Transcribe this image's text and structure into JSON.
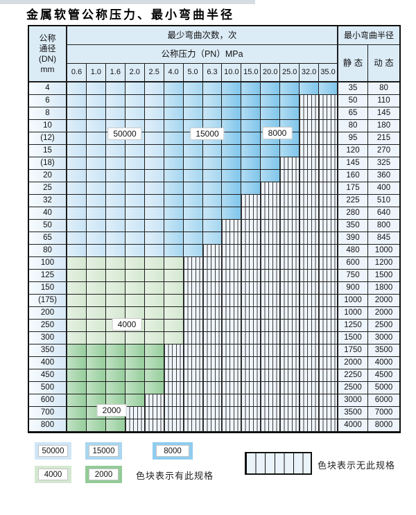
{
  "page": {
    "title": "金属软管公称压力、最小弯曲半径"
  },
  "table": {
    "corner_lines": [
      "公称",
      "通径",
      "(DN)",
      "mm"
    ],
    "bend_cycles_header": "最少弯曲次数，次",
    "pressure_header": "公称压力（PN）MPa",
    "radius_header": "最小弯曲半径",
    "static_header": "静 态",
    "dynamic_header": "动 态",
    "pressures": [
      "0.6",
      "1.0",
      "1.6",
      "2.0",
      "2.5",
      "4.0",
      "5.0",
      "6.3",
      "10.0",
      "15.0",
      "20.0",
      "25.0",
      "32.0",
      "35.0"
    ],
    "rows": [
      {
        "dn": "4",
        "zone": "blue",
        "colored": 14,
        "static": "35",
        "dynamic": "80"
      },
      {
        "dn": "6",
        "zone": "blue",
        "colored": 12,
        "static": "50",
        "dynamic": "110"
      },
      {
        "dn": "8",
        "zone": "blue",
        "colored": 12,
        "static": "65",
        "dynamic": "145"
      },
      {
        "dn": "10",
        "zone": "blue",
        "colored": 12,
        "static": "80",
        "dynamic": "180"
      },
      {
        "dn": "(12)",
        "zone": "blue",
        "colored": 12,
        "static": "95",
        "dynamic": "215"
      },
      {
        "dn": "15",
        "zone": "blue",
        "colored": 12,
        "static": "120",
        "dynamic": "270"
      },
      {
        "dn": "(18)",
        "zone": "blue",
        "colored": 11,
        "static": "145",
        "dynamic": "325"
      },
      {
        "dn": "20",
        "zone": "blue",
        "colored": 11,
        "static": "160",
        "dynamic": "360"
      },
      {
        "dn": "25",
        "zone": "blue",
        "colored": 10,
        "static": "175",
        "dynamic": "400"
      },
      {
        "dn": "32",
        "zone": "blue",
        "colored": 9,
        "static": "225",
        "dynamic": "510"
      },
      {
        "dn": "40",
        "zone": "blue",
        "colored": 9,
        "static": "280",
        "dynamic": "640"
      },
      {
        "dn": "50",
        "zone": "blue",
        "colored": 8,
        "static": "350",
        "dynamic": "800"
      },
      {
        "dn": "65",
        "zone": "blue",
        "colored": 8,
        "static": "390",
        "dynamic": "845"
      },
      {
        "dn": "80",
        "zone": "blue",
        "colored": 7,
        "static": "480",
        "dynamic": "1000"
      },
      {
        "dn": "100",
        "zone": "g4",
        "colored": 6,
        "static": "600",
        "dynamic": "1200"
      },
      {
        "dn": "125",
        "zone": "g4",
        "colored": 6,
        "static": "750",
        "dynamic": "1500"
      },
      {
        "dn": "150",
        "zone": "g4",
        "colored": 6,
        "static": "900",
        "dynamic": "1800"
      },
      {
        "dn": "(175)",
        "zone": "g4",
        "colored": 6,
        "static": "1000",
        "dynamic": "2000"
      },
      {
        "dn": "200",
        "zone": "g4",
        "colored": 6,
        "static": "1000",
        "dynamic": "2000"
      },
      {
        "dn": "250",
        "zone": "g4",
        "colored": 6,
        "static": "1250",
        "dynamic": "2500"
      },
      {
        "dn": "300",
        "zone": "g4",
        "colored": 6,
        "static": "1500",
        "dynamic": "3000"
      },
      {
        "dn": "350",
        "zone": "g2",
        "colored": 5,
        "static": "1750",
        "dynamic": "3500"
      },
      {
        "dn": "400",
        "zone": "g2",
        "colored": 5,
        "static": "2000",
        "dynamic": "4000"
      },
      {
        "dn": "450",
        "zone": "g2",
        "colored": 5,
        "static": "2250",
        "dynamic": "4500"
      },
      {
        "dn": "500",
        "zone": "g2",
        "colored": 5,
        "static": "2500",
        "dynamic": "5000"
      },
      {
        "dn": "600",
        "zone": "g2",
        "colored": 4,
        "static": "3000",
        "dynamic": "6000"
      },
      {
        "dn": "700",
        "zone": "g2",
        "colored": 3,
        "static": "3500",
        "dynamic": "7000"
      },
      {
        "dn": "800",
        "zone": "g2",
        "colored": 3,
        "static": "4000",
        "dynamic": "8000"
      }
    ]
  },
  "zone_labels": [
    {
      "label": "50000"
    },
    {
      "label": "15000"
    },
    {
      "label": "8000"
    },
    {
      "label": "4000"
    },
    {
      "label": "2000"
    }
  ],
  "colors": {
    "c50000": "#cbe5f6",
    "c15000": "#a9d8f1",
    "c8000": "#85c8ec",
    "c4000": "#d6e9d2",
    "c2000": "#9bd0a0",
    "hatch_bg": "#eff5fb",
    "header_bg": "#dcecf7"
  },
  "legend": {
    "items": [
      {
        "label": "50000",
        "color": "#cfe6f6"
      },
      {
        "label": "15000",
        "color": "#a9d6f0"
      },
      {
        "label": "8000",
        "color": "#8fcdf0"
      },
      {
        "label": "4000",
        "color": "#d5e8d1"
      },
      {
        "label": "2000",
        "color": "#93cb97"
      }
    ],
    "has_text": "色块表示有此规格",
    "none_text": "色块表示无此规格"
  }
}
